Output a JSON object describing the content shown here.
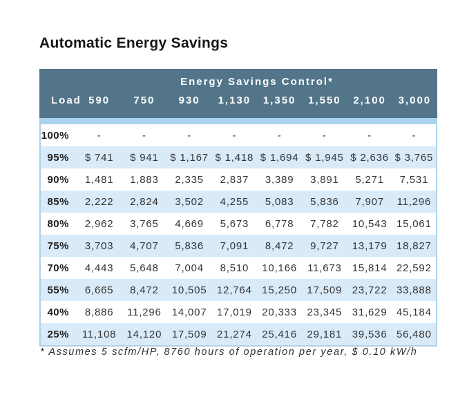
{
  "title": "Automatic Energy Savings",
  "chart_data": {
    "type": "table",
    "title": "Automatic Energy Savings",
    "group_header": "Energy Savings Control*",
    "columns": [
      "Load",
      "590",
      "750",
      "930",
      "1,130",
      "1,350",
      "1,550",
      "2,100",
      "3,000"
    ],
    "rows": [
      {
        "load": "100%",
        "values": [
          "-",
          "-",
          "-",
          "-",
          "-",
          "-",
          "-",
          "-"
        ]
      },
      {
        "load": "95%",
        "values": [
          "$ 741",
          "$ 941",
          "$ 1,167",
          "$ 1,418",
          "$ 1,694",
          "$ 1,945",
          "$ 2,636",
          "$ 3,765"
        ]
      },
      {
        "load": "90%",
        "values": [
          "1,481",
          "1,883",
          "2,335",
          "2,837",
          "3,389",
          "3,891",
          "5,271",
          "7,531"
        ]
      },
      {
        "load": "85%",
        "values": [
          "2,222",
          "2,824",
          "3,502",
          "4,255",
          "5,083",
          "5,836",
          "7,907",
          "11,296"
        ]
      },
      {
        "load": "80%",
        "values": [
          "2,962",
          "3,765",
          "4,669",
          "5,673",
          "6,778",
          "7,782",
          "10,543",
          "15,061"
        ]
      },
      {
        "load": "75%",
        "values": [
          "3,703",
          "4,707",
          "5,836",
          "7,091",
          "8,472",
          "9,727",
          "13,179",
          "18,827"
        ]
      },
      {
        "load": "70%",
        "values": [
          "4,443",
          "5,648",
          "7,004",
          "8,510",
          "10,166",
          "11,673",
          "15,814",
          "22,592"
        ]
      },
      {
        "load": "55%",
        "values": [
          "6,665",
          "8,472",
          "10,505",
          "12,764",
          "15,250",
          "17,509",
          "23,722",
          "33,888"
        ]
      },
      {
        "load": "40%",
        "values": [
          "8,886",
          "11,296",
          "14,007",
          "17,019",
          "20,333",
          "23,345",
          "31,629",
          "45,184"
        ]
      },
      {
        "load": "25%",
        "values": [
          "11,108",
          "14,120",
          "17,509",
          "21,274",
          "25,416",
          "29,181",
          "39,536",
          "56,480"
        ]
      }
    ],
    "footnote": "* Assumes 5 scfm/HP, 8760 hours of operation per year, $ 0.10 kW/h",
    "layout": {
      "alternating_row_start": "white",
      "grid": false
    }
  },
  "colors": {
    "header_bg": "#527589",
    "strip": "#a9d3ee",
    "row_alt": "#d9eaf8",
    "body_text": "#343434",
    "header_text": "#ffffff"
  }
}
